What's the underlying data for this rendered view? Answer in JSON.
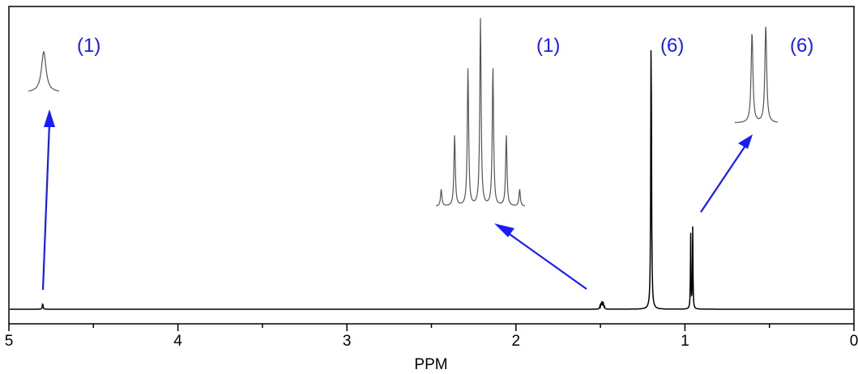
{
  "chart_data": {
    "type": "line",
    "title": "",
    "xlabel": "PPM",
    "ylabel": "",
    "xlim": [
      5,
      0
    ],
    "x_reversed": true,
    "xticks": [
      "5",
      "4",
      "3",
      "2",
      "1",
      "0"
    ],
    "grid": false,
    "series": [
      {
        "peaks": [
          {
            "ppm": 4.8,
            "multiplicity": "singlet",
            "relative_height": 0.02,
            "integration_label": "(1)"
          },
          {
            "ppm": 1.49,
            "multiplicity": "septet",
            "relative_height": 0.03,
            "integration_label": "(1)"
          },
          {
            "ppm": 1.2,
            "multiplicity": "singlet",
            "relative_height": 1.0,
            "integration_label": "(6)"
          },
          {
            "ppm": 0.96,
            "multiplicity": "doublet",
            "relative_height": 0.28,
            "integration_label": "(6)"
          }
        ]
      }
    ],
    "insets": [
      {
        "peak_ppm": 4.8,
        "shape": "singlet"
      },
      {
        "peak_ppm": 1.49,
        "shape": "septet"
      },
      {
        "peak_ppm": 0.96,
        "shape": "doublet"
      }
    ],
    "integration_labels": [
      "(1)",
      "(1)",
      "(6)",
      "(6)"
    ],
    "colors": {
      "spectrum": "#000000",
      "inset": "#555555",
      "annotation": "#1a1aff"
    }
  }
}
